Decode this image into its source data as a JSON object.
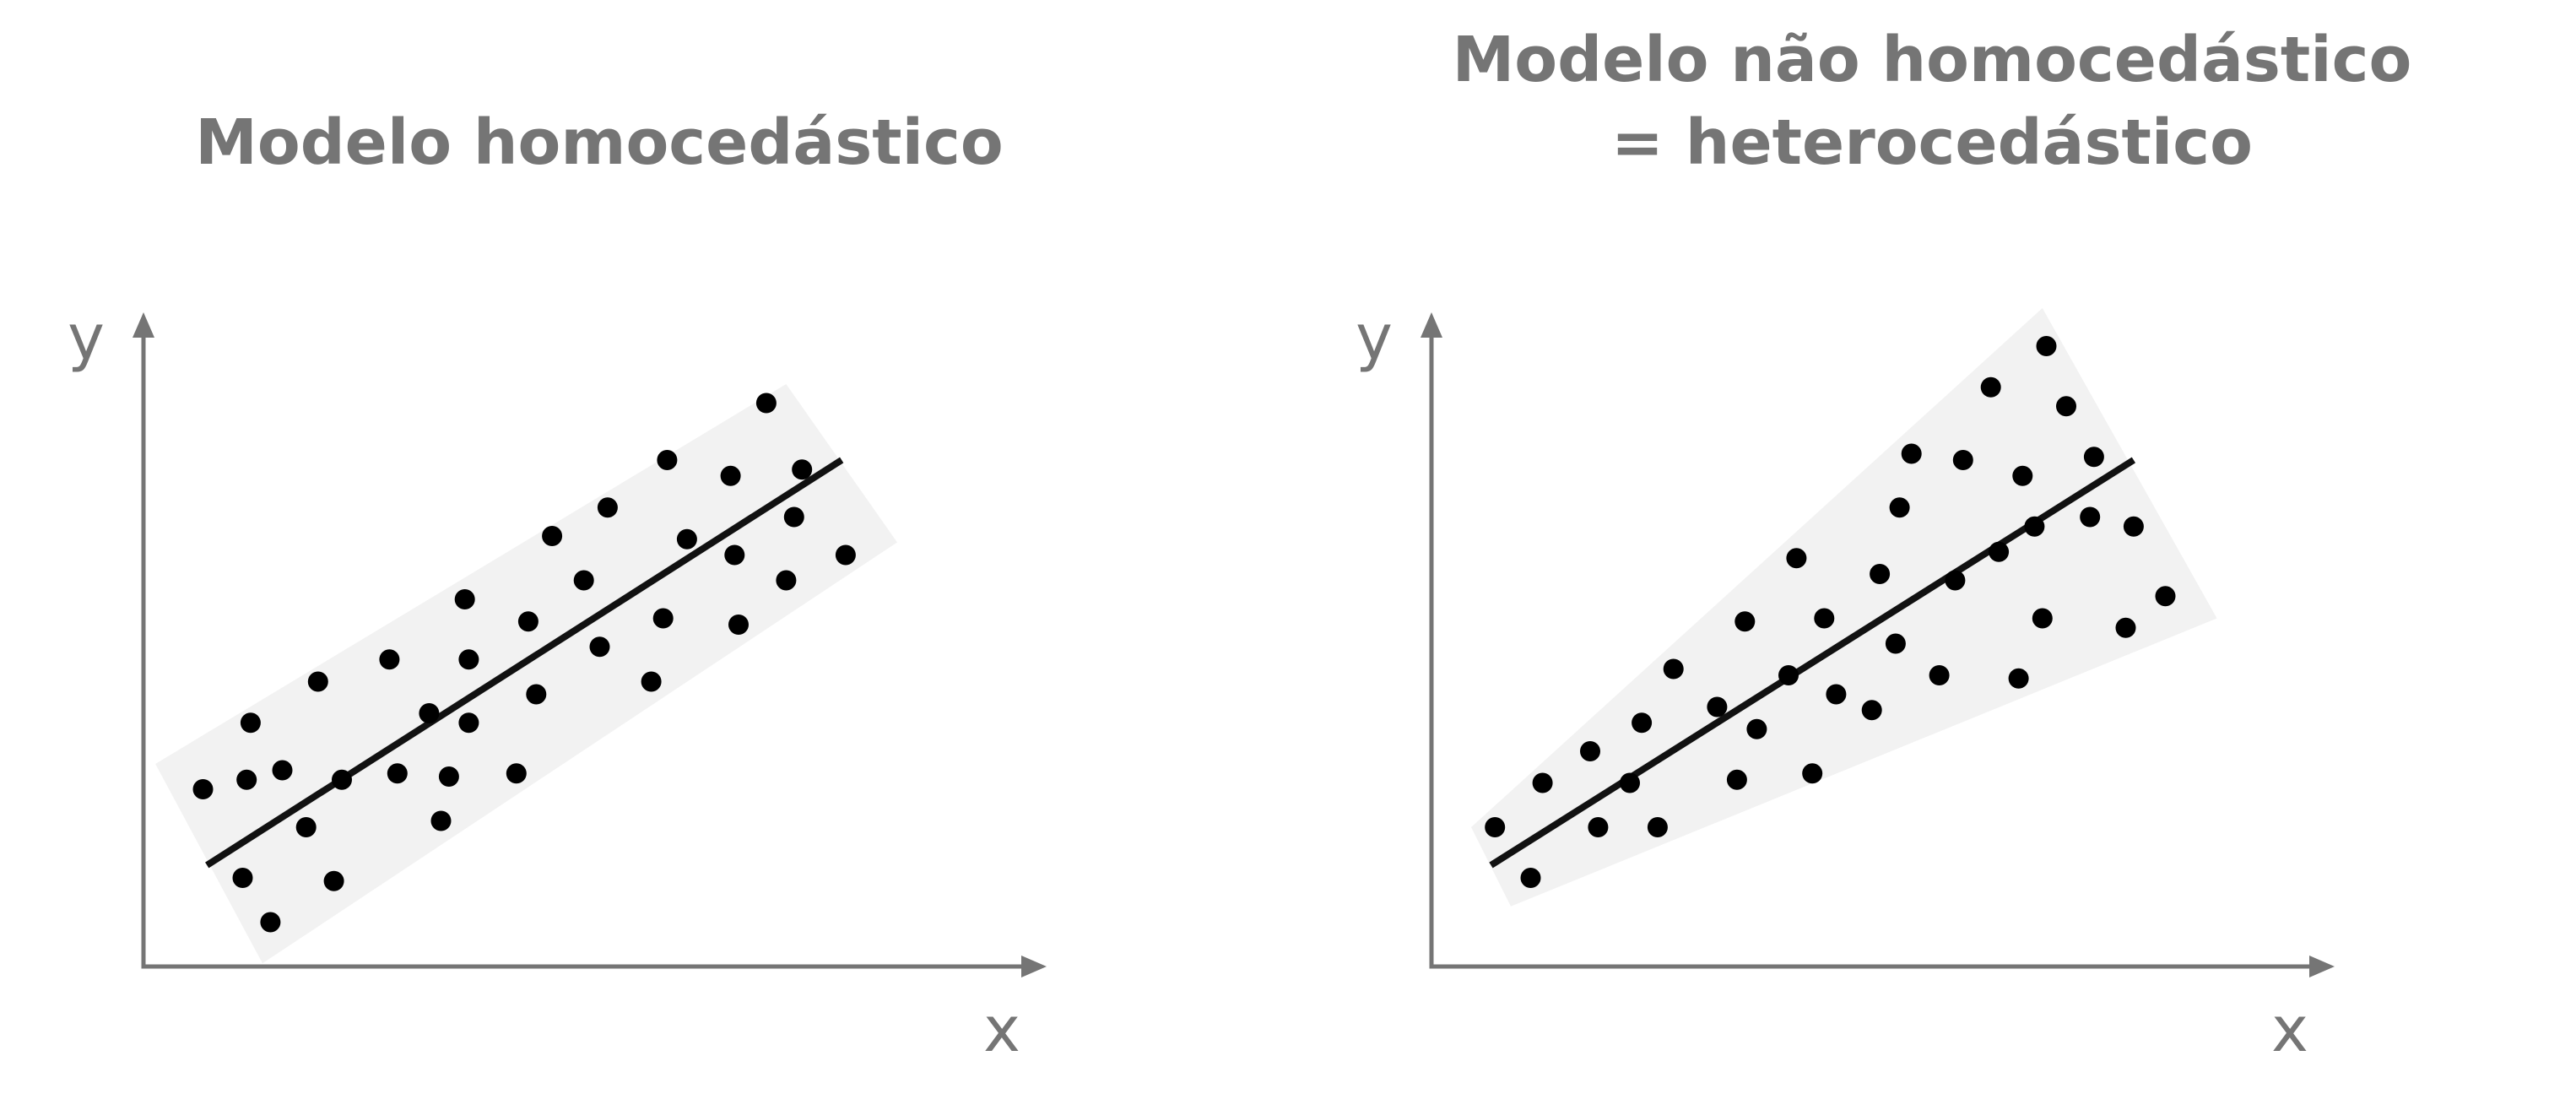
{
  "chart_data": [
    {
      "type": "scatter",
      "title": "Modelo homocedástico",
      "xlabel": "x",
      "ylabel": "y",
      "xlim": [
        0,
        10
      ],
      "ylim": [
        0,
        10
      ],
      "grid": false,
      "band": {
        "kind": "constant-width",
        "color": "#f2f2f2",
        "upper_start": [
          0.15,
          3.2
        ],
        "upper_end": [
          8.1,
          9.2
        ],
        "lower_start": [
          1.5,
          0.05
        ],
        "lower_end": [
          9.5,
          6.7
        ]
      },
      "fit_line": {
        "x": [
          0.8,
          8.8
        ],
        "y": [
          1.6,
          8.0
        ],
        "color": "#111111"
      },
      "series": [
        {
          "color": "#000000",
          "points": [
            [
              0.75,
              2.8
            ],
            [
              1.3,
              2.95
            ],
            [
              1.35,
              3.85
            ],
            [
              1.75,
              3.1
            ],
            [
              2.2,
              4.5
            ],
            [
              1.25,
              1.4
            ],
            [
              1.6,
              0.7
            ],
            [
              2.05,
              2.2
            ],
            [
              2.4,
              1.35
            ],
            [
              2.5,
              2.95
            ],
            [
              3.1,
              4.85
            ],
            [
              3.2,
              3.05
            ],
            [
              3.6,
              4.0
            ],
            [
              3.75,
              2.3
            ],
            [
              3.85,
              3.0
            ],
            [
              4.05,
              5.8
            ],
            [
              4.1,
              4.85
            ],
            [
              4.1,
              3.85
            ],
            [
              4.7,
              3.05
            ],
            [
              4.85,
              5.45
            ],
            [
              4.95,
              4.3
            ],
            [
              5.15,
              6.8
            ],
            [
              5.55,
              6.1
            ],
            [
              5.75,
              5.05
            ],
            [
              5.85,
              7.25
            ],
            [
              6.4,
              4.5
            ],
            [
              6.55,
              5.5
            ],
            [
              6.6,
              8.0
            ],
            [
              6.85,
              6.75
            ],
            [
              7.4,
              7.75
            ],
            [
              7.45,
              6.5
            ],
            [
              7.5,
              5.4
            ],
            [
              7.85,
              8.9
            ],
            [
              8.1,
              6.1
            ],
            [
              8.2,
              7.1
            ],
            [
              8.3,
              7.85
            ],
            [
              8.85,
              6.5
            ]
          ]
        }
      ]
    },
    {
      "type": "scatter",
      "title": "Modelo não homocedástico\n= heterocedástico",
      "title_lines": [
        "Modelo não homocedástico",
        "= heterocedástico"
      ],
      "xlabel": "x",
      "ylabel": "y",
      "xlim": [
        0,
        10
      ],
      "ylim": [
        0,
        10
      ],
      "grid": false,
      "band": {
        "kind": "widening",
        "color": "#f2f2f2",
        "upper_start": [
          0.5,
          2.2
        ],
        "upper_end": [
          7.7,
          10.4
        ],
        "lower_start": [
          1.0,
          0.95
        ],
        "lower_end": [
          9.9,
          5.5
        ]
      },
      "fit_line": {
        "x": [
          0.75,
          8.85
        ],
        "y": [
          1.6,
          8.0
        ],
        "color": "#111111"
      },
      "series": [
        {
          "color": "#000000",
          "points": [
            [
              0.8,
              2.2
            ],
            [
              1.25,
              1.4
            ],
            [
              1.4,
              2.9
            ],
            [
              2.0,
              3.4
            ],
            [
              2.1,
              2.2
            ],
            [
              2.5,
              2.9
            ],
            [
              2.65,
              3.85
            ],
            [
              2.85,
              2.2
            ],
            [
              3.05,
              4.7
            ],
            [
              3.6,
              4.1
            ],
            [
              3.85,
              2.95
            ],
            [
              3.95,
              5.45
            ],
            [
              4.1,
              3.75
            ],
            [
              4.5,
              4.6
            ],
            [
              4.6,
              6.45
            ],
            [
              4.8,
              3.05
            ],
            [
              4.95,
              5.5
            ],
            [
              5.1,
              4.3
            ],
            [
              5.55,
              4.05
            ],
            [
              5.65,
              6.2
            ],
            [
              5.85,
              5.1
            ],
            [
              5.9,
              7.25
            ],
            [
              6.05,
              8.1
            ],
            [
              6.4,
              4.6
            ],
            [
              6.6,
              6.1
            ],
            [
              6.7,
              8.0
            ],
            [
              7.05,
              9.15
            ],
            [
              7.15,
              6.55
            ],
            [
              7.4,
              4.55
            ],
            [
              7.45,
              7.75
            ],
            [
              7.6,
              6.95
            ],
            [
              7.7,
              5.5
            ],
            [
              7.75,
              9.8
            ],
            [
              8.0,
              8.85
            ],
            [
              8.3,
              7.1
            ],
            [
              8.35,
              8.05
            ],
            [
              8.75,
              5.35
            ],
            [
              8.85,
              6.95
            ],
            [
              9.25,
              5.85
            ]
          ]
        }
      ]
    }
  ]
}
